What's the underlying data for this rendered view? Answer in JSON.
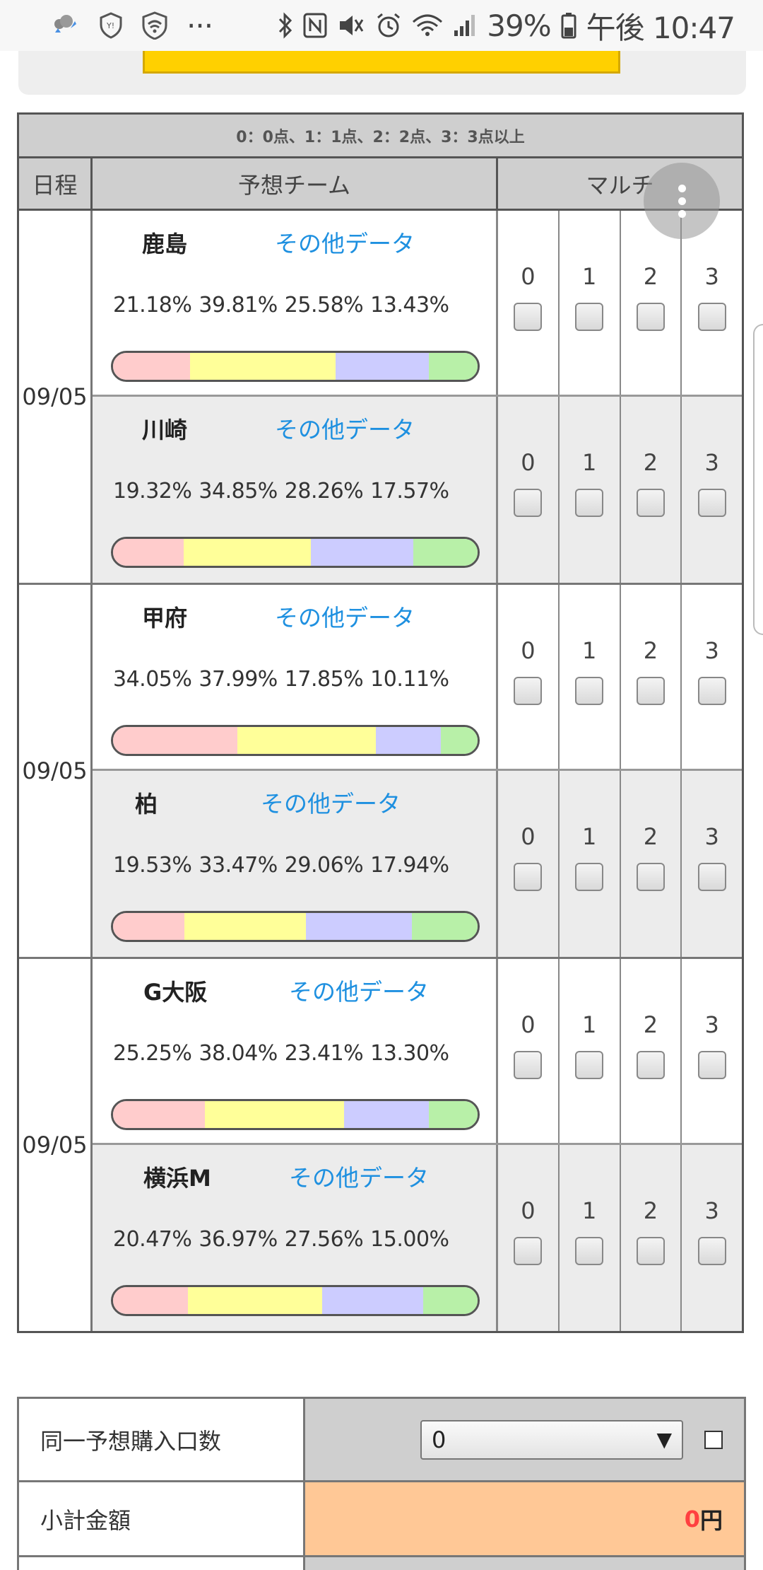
{
  "status_bar": {
    "battery": "39%",
    "time": "午後 10:47",
    "ellipsis": "···",
    "left_icons": [
      "weather-icon",
      "shield-icon",
      "vpn-icon"
    ],
    "right_icons": [
      "bluetooth-icon",
      "nfc-icon",
      "mute-icon",
      "alarm-icon",
      "wifi-icon",
      "signal-icon",
      "battery-icon"
    ]
  },
  "legend": "0：0点、1：1点、2：2点、3：3点以上",
  "headers": {
    "date": "日程",
    "team": "予想チーム",
    "multi": "マルチ"
  },
  "other_data_label": "その他データ",
  "multi_labels": [
    "0",
    "1",
    "2",
    "3"
  ],
  "bar_colors": [
    "#ffcccc",
    "#ffff99",
    "#ccccff",
    "#b8f0a8"
  ],
  "matches": [
    {
      "date": "09/05",
      "teams": [
        {
          "name": "鹿島",
          "pcts": [
            "21.18%",
            "39.81%",
            "25.58%",
            "13.43%"
          ],
          "values": [
            21.18,
            39.81,
            25.58,
            13.43
          ]
        },
        {
          "name": "川崎",
          "pcts": [
            "19.32%",
            "34.85%",
            "28.26%",
            "17.57%"
          ],
          "values": [
            19.32,
            34.85,
            28.26,
            17.57
          ]
        }
      ]
    },
    {
      "date": "09/05",
      "teams": [
        {
          "name": "甲府",
          "pcts": [
            "34.05%",
            "37.99%",
            "17.85%",
            "10.11%"
          ],
          "values": [
            34.05,
            37.99,
            17.85,
            10.11
          ]
        },
        {
          "name": "柏",
          "pcts": [
            "19.53%",
            "33.47%",
            "29.06%",
            "17.94%"
          ],
          "values": [
            19.53,
            33.47,
            29.06,
            17.94
          ]
        }
      ]
    },
    {
      "date": "09/05",
      "teams": [
        {
          "name": "G大阪",
          "pcts": [
            "25.25%",
            "38.04%",
            "23.41%",
            "13.30%"
          ],
          "values": [
            25.25,
            38.04,
            23.41,
            13.3
          ]
        },
        {
          "name": "横浜M",
          "pcts": [
            "20.47%",
            "36.97%",
            "27.56%",
            "15.00%"
          ],
          "values": [
            20.47,
            36.97,
            27.56,
            15.0
          ]
        }
      ]
    }
  ],
  "summary": {
    "quantity_label": "同一予想購入口数",
    "quantity_value": "0",
    "subtotal_label": "小計金額",
    "subtotal_value": "0",
    "subtotal_unit": "円"
  }
}
